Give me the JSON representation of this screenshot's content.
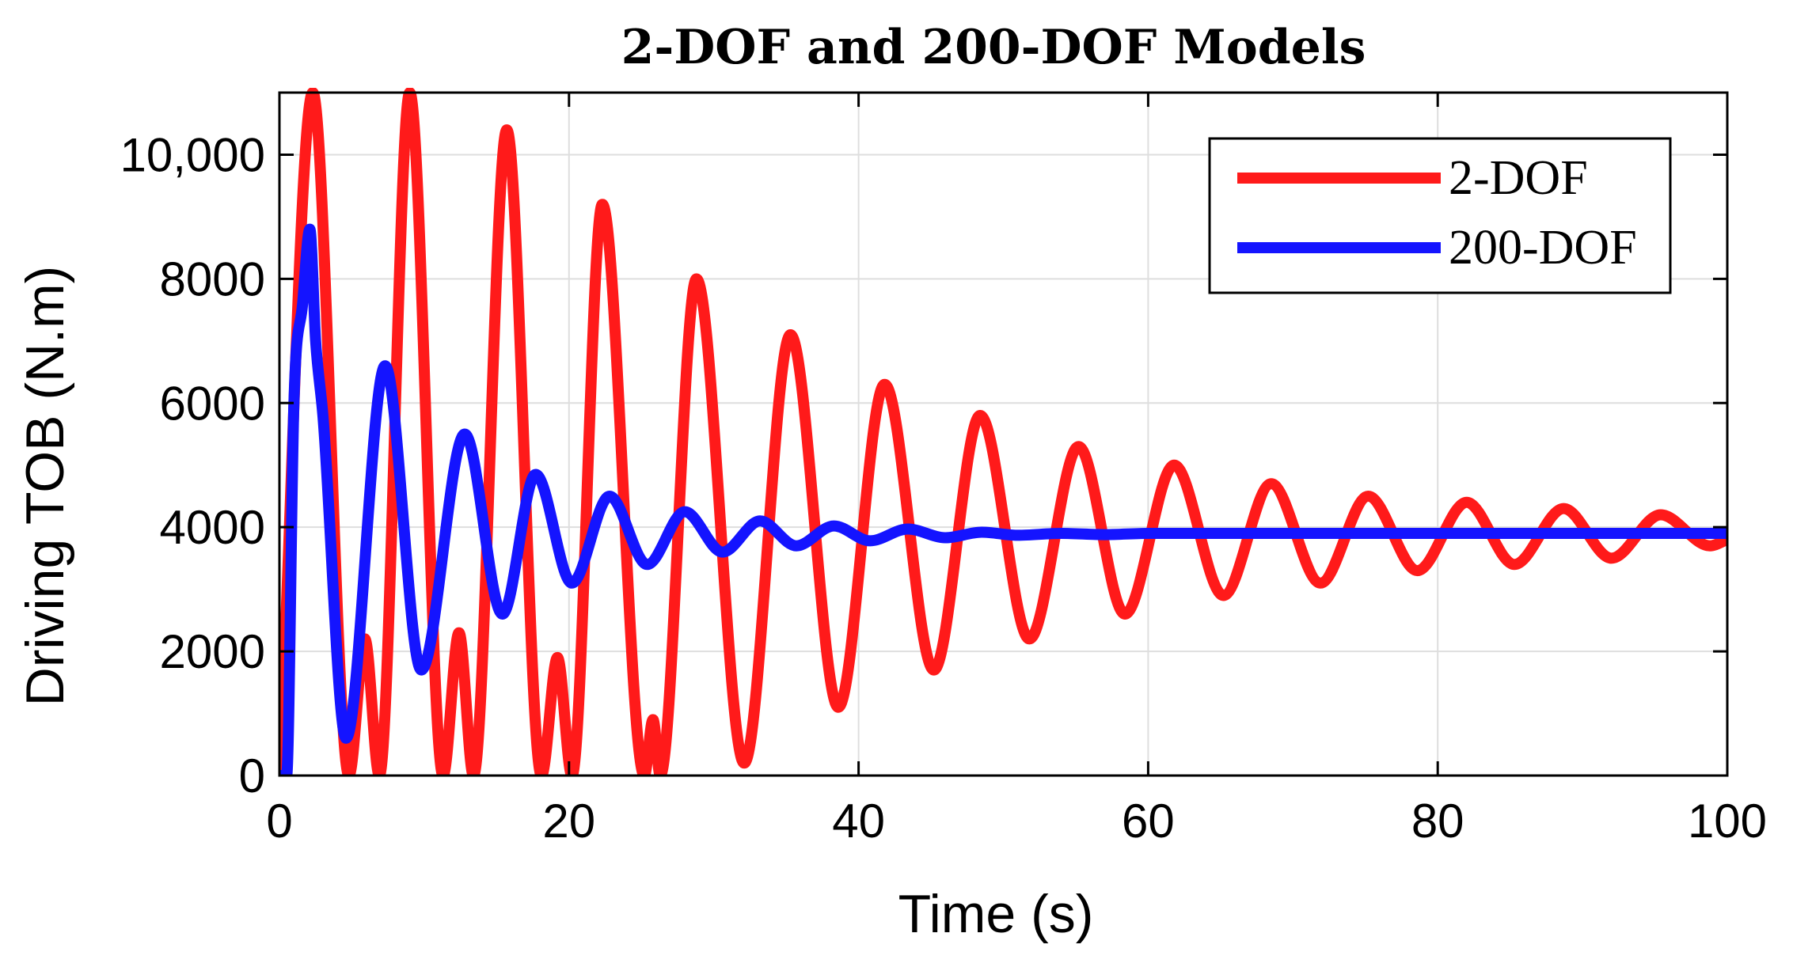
{
  "chart_data": {
    "type": "line",
    "title": "2-DOF and 200-DOF Models",
    "xlabel": "Time (s)",
    "ylabel": "Driving TOB (N.m)",
    "xlim": [
      0,
      100
    ],
    "ylim": [
      0,
      11000
    ],
    "xticks": [
      0,
      20,
      40,
      60,
      80,
      100
    ],
    "xtick_labels": [
      "0",
      "20",
      "40",
      "60",
      "80",
      "100"
    ],
    "yticks": [
      0,
      2000,
      4000,
      6000,
      8000,
      10000
    ],
    "ytick_labels": [
      "0",
      "2000",
      "4000",
      "6000",
      "8000",
      "10,000"
    ],
    "grid": true,
    "legend_position": "top-right",
    "series": [
      {
        "name": "2-DOF",
        "color": "#ff1a1a",
        "x": [
          0,
          2.3,
          4.8,
          5.9,
          6.9,
          9.0,
          11.3,
          12.4,
          13.4,
          15.7,
          18.1,
          19.2,
          20.2,
          22.3,
          25.2,
          25.8,
          26.3,
          28.8,
          32.1,
          35.3,
          38.6,
          41.8,
          45.2,
          48.4,
          51.8,
          55.2,
          58.4,
          61.8,
          65.2,
          68.5,
          71.9,
          75.2,
          78.6,
          82.0,
          85.3,
          88.7,
          92.0,
          95.4,
          98.8,
          100
        ],
        "values": [
          0,
          11000,
          0,
          2200,
          0,
          11000,
          0,
          2300,
          0,
          10400,
          0,
          1900,
          0,
          9200,
          0,
          900,
          0,
          8000,
          200,
          7100,
          1100,
          6300,
          1700,
          5800,
          2200,
          5300,
          2600,
          5000,
          2900,
          4700,
          3100,
          4500,
          3300,
          4400,
          3400,
          4300,
          3500,
          4200,
          3700,
          3800
        ]
      },
      {
        "name": "200-DOF",
        "color": "#1414ff",
        "x": [
          0,
          0.5,
          1.0,
          1.6,
          2.1,
          2.5,
          3.0,
          4.6,
          7.3,
          9.8,
          12.8,
          15.4,
          17.7,
          20.2,
          22.8,
          25.4,
          28.0,
          30.6,
          33.2,
          35.7,
          38.3,
          40.8,
          43.4,
          46.0,
          48.5,
          51.0,
          54.0,
          57.0,
          60.0,
          100
        ],
        "values": [
          0,
          0,
          6000,
          7600,
          8800,
          7000,
          5800,
          600,
          6600,
          1700,
          5500,
          2600,
          4850,
          3100,
          4500,
          3400,
          4250,
          3600,
          4100,
          3700,
          4020,
          3780,
          3970,
          3830,
          3920,
          3870,
          3900,
          3880,
          3900,
          3900
        ]
      }
    ]
  }
}
